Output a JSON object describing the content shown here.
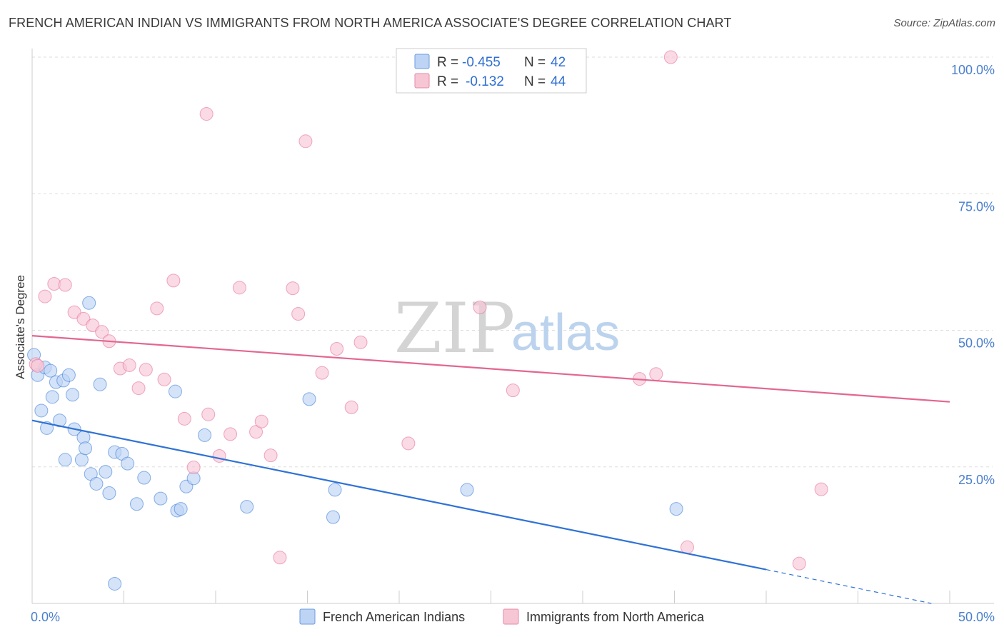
{
  "title": "FRENCH AMERICAN INDIAN VS IMMIGRANTS FROM NORTH AMERICA ASSOCIATE'S DEGREE CORRELATION CHART",
  "source": "Source: ZipAtlas.com",
  "watermark": {
    "zip": "ZIP",
    "atlas": "atlas"
  },
  "colors": {
    "blue": "#2f72d6",
    "blue_fill": "#bdd4f5",
    "pink": "#e36690",
    "pink_fill": "#f7c6d5",
    "grid": "#dddddd",
    "axis_text": "#4a7fcc"
  },
  "chart_data": {
    "type": "scatter",
    "title": "FRENCH AMERICAN INDIAN VS IMMIGRANTS FROM NORTH AMERICA ASSOCIATE'S DEGREE CORRELATION CHART",
    "xlabel": "",
    "ylabel": "Associate's Degree",
    "xlim": [
      0,
      50
    ],
    "ylim": [
      0,
      100
    ],
    "x_tick_labels": [
      "0.0%",
      "50.0%"
    ],
    "y_ticks": [
      {
        "value": 100,
        "label": "100.0%"
      },
      {
        "value": 75,
        "label": "75.0%"
      },
      {
        "value": 50,
        "label": "50.0%"
      },
      {
        "value": 25,
        "label": "25.0%"
      }
    ],
    "legend_stats": [
      {
        "r_label": "R =",
        "r": "-0.455",
        "n_label": "N =",
        "n": "42"
      },
      {
        "r_label": "R =",
        "r": "-0.132",
        "n_label": "N =",
        "n": "44"
      }
    ],
    "series": [
      {
        "name": "French American Indians",
        "color": "#2f72d6",
        "fill": "#bdd4f5",
        "trend": {
          "x0": 0,
          "y0": 33.5,
          "x1": 40,
          "y1": 6.2,
          "dashed_to_x": 49,
          "dashed_to_y": 0
        },
        "points": [
          [
            0.1,
            45.5
          ],
          [
            0.3,
            41.8
          ],
          [
            0.5,
            35.3
          ],
          [
            0.7,
            43.2
          ],
          [
            0.8,
            32.1
          ],
          [
            1.0,
            42.6
          ],
          [
            1.1,
            37.8
          ],
          [
            1.3,
            40.5
          ],
          [
            1.5,
            33.5
          ],
          [
            1.7,
            40.8
          ],
          [
            1.8,
            26.3
          ],
          [
            2.0,
            41.8
          ],
          [
            2.2,
            38.2
          ],
          [
            2.3,
            31.9
          ],
          [
            2.7,
            26.3
          ],
          [
            2.8,
            30.4
          ],
          [
            2.9,
            28.4
          ],
          [
            3.1,
            55.0
          ],
          [
            3.2,
            23.7
          ],
          [
            3.5,
            21.9
          ],
          [
            3.7,
            40.1
          ],
          [
            4.0,
            24.1
          ],
          [
            4.2,
            20.2
          ],
          [
            4.5,
            27.7
          ],
          [
            4.9,
            27.4
          ],
          [
            5.2,
            25.6
          ],
          [
            5.7,
            18.2
          ],
          [
            6.1,
            23.0
          ],
          [
            7.0,
            19.2
          ],
          [
            7.8,
            38.8
          ],
          [
            7.9,
            17.0
          ],
          [
            8.1,
            17.3
          ],
          [
            8.4,
            21.4
          ],
          [
            8.8,
            22.9
          ],
          [
            9.4,
            30.8
          ],
          [
            11.7,
            17.7
          ],
          [
            15.1,
            37.4
          ],
          [
            16.4,
            15.8
          ],
          [
            16.5,
            20.8
          ],
          [
            23.7,
            20.8
          ],
          [
            35.1,
            17.3
          ],
          [
            4.5,
            3.6
          ]
        ]
      },
      {
        "name": "Immigrants from North America",
        "color": "#e36690",
        "fill": "#f7c6d5",
        "trend": {
          "x0": 0,
          "y0": 49.0,
          "x1": 50,
          "y1": 36.9
        },
        "points": [
          [
            0.2,
            43.8
          ],
          [
            0.7,
            56.2
          ],
          [
            1.2,
            58.5
          ],
          [
            1.8,
            58.3
          ],
          [
            2.3,
            53.3
          ],
          [
            2.8,
            52.1
          ],
          [
            3.3,
            50.9
          ],
          [
            3.8,
            49.7
          ],
          [
            4.2,
            48.0
          ],
          [
            4.8,
            43.0
          ],
          [
            5.3,
            43.6
          ],
          [
            5.8,
            39.4
          ],
          [
            6.2,
            42.8
          ],
          [
            6.8,
            54.0
          ],
          [
            7.2,
            41.0
          ],
          [
            7.7,
            59.1
          ],
          [
            8.3,
            33.8
          ],
          [
            8.8,
            24.9
          ],
          [
            9.5,
            89.6
          ],
          [
            9.6,
            34.6
          ],
          [
            10.2,
            27.0
          ],
          [
            10.8,
            31.0
          ],
          [
            11.3,
            57.8
          ],
          [
            12.2,
            31.4
          ],
          [
            12.5,
            33.3
          ],
          [
            13.0,
            27.1
          ],
          [
            13.5,
            8.4
          ],
          [
            14.2,
            57.7
          ],
          [
            14.5,
            53.0
          ],
          [
            14.9,
            84.6
          ],
          [
            15.8,
            42.2
          ],
          [
            16.6,
            46.6
          ],
          [
            17.4,
            35.9
          ],
          [
            17.9,
            47.8
          ],
          [
            20.5,
            29.3
          ],
          [
            24.4,
            54.2
          ],
          [
            26.2,
            39.0
          ],
          [
            33.1,
            41.1
          ],
          [
            34.0,
            42.0
          ],
          [
            34.8,
            100.0
          ],
          [
            35.7,
            10.3
          ],
          [
            41.8,
            7.3
          ],
          [
            43.0,
            20.9
          ],
          [
            0.3,
            43.5
          ]
        ]
      }
    ]
  },
  "legend_bottom": [
    {
      "label": "French American Indians"
    },
    {
      "label": "Immigrants from North America"
    }
  ]
}
